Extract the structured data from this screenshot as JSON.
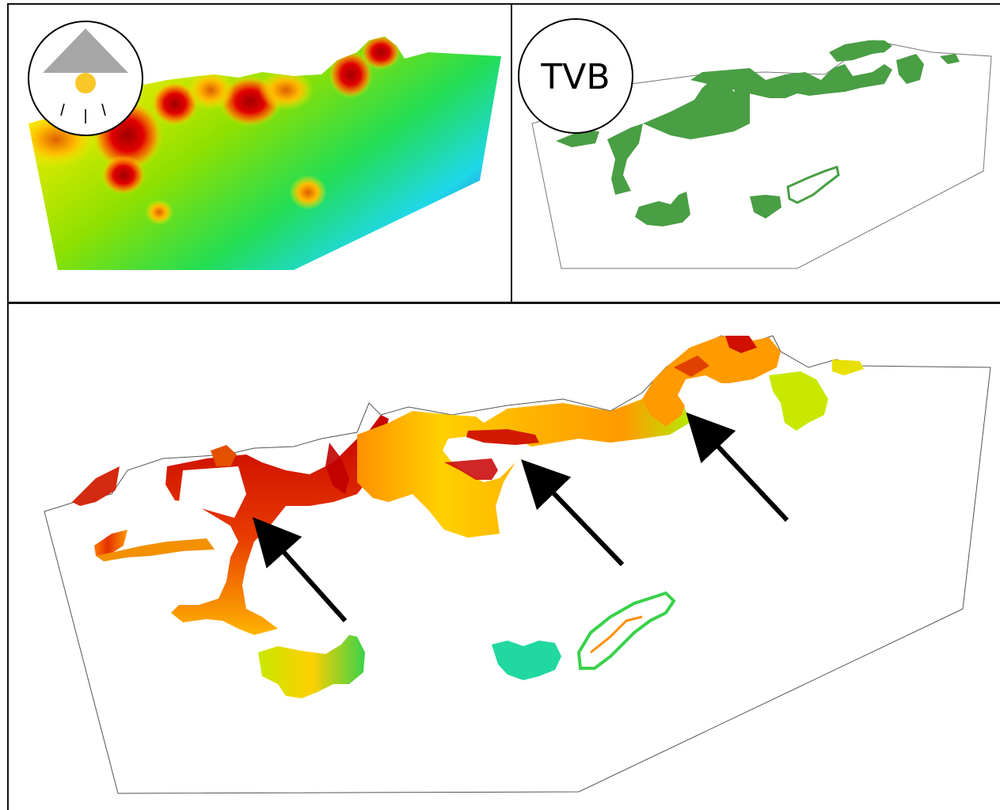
{
  "panels": {
    "top_left": {
      "icon": "street-lamp-icon",
      "colors": {
        "ramp_low": "#2e3fd6",
        "ramp_mid": "#26d96a",
        "ramp_high": "#ffee00",
        "hot": "#c80000"
      }
    },
    "top_right": {
      "badge_text": "TVB",
      "colors": {
        "fill": "#4a9e44",
        "outline": "#666666"
      }
    },
    "bottom": {
      "arrow_count": 3,
      "colors": {
        "hot": "#c40000",
        "warm": "#ff7a00",
        "mid": "#ffd400",
        "cool": "#7de000",
        "cold": "#20e0a0"
      }
    }
  }
}
